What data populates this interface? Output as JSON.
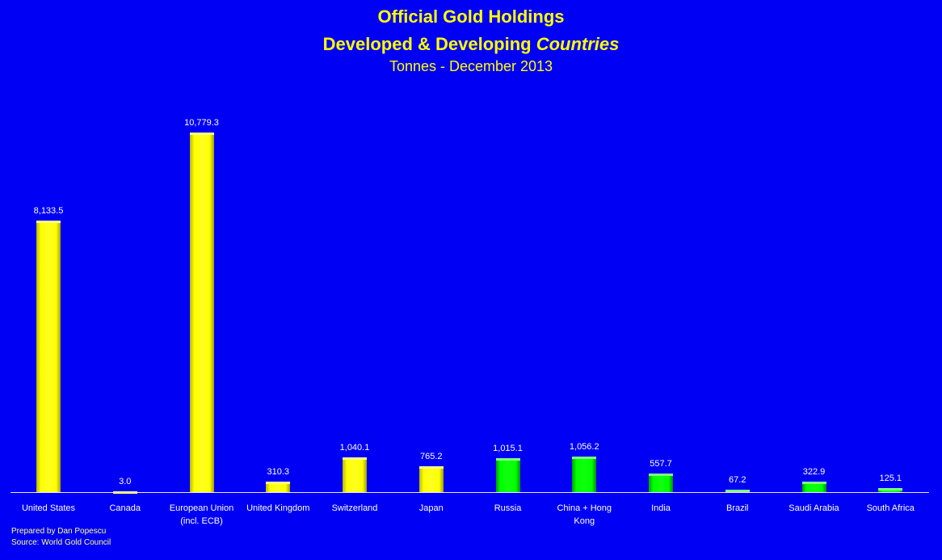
{
  "header": {
    "title": "Official Gold Holdings",
    "subtitle_main": "Developed & Developing ",
    "subtitle_italic": "Countries",
    "unit_line": "Tonnes - December 2013"
  },
  "footer": {
    "prepared_by": "Prepared by Dan Popescu",
    "source": "Source: World Gold Council"
  },
  "colors": {
    "background": "#0000f5",
    "developed": "#ffff00",
    "developing": "#00ff00",
    "title": "#ffff00",
    "labels": "#ffffff"
  },
  "chart_data": {
    "type": "bar",
    "title": "Official Gold Holdings — Developed & Developing Countries",
    "subtitle": "Tonnes - December 2013",
    "xlabel": "",
    "ylabel": "Tonnes",
    "ylim": [
      0,
      11000
    ],
    "grid": false,
    "legend": null,
    "categories": [
      "United States",
      "Canada",
      "European Union (incl. ECB)",
      "United Kingdom",
      "Switzerland",
      "Japan",
      "Russia",
      "China + Hong Kong",
      "India",
      "Brazil",
      "Saudi Arabia",
      "South Africa"
    ],
    "values": [
      8133.5,
      3.0,
      10779.3,
      310.3,
      1040.1,
      765.2,
      1015.1,
      1056.2,
      557.7,
      67.2,
      322.9,
      125.1
    ],
    "value_labels": [
      "8,133.5",
      "3.0",
      "10,779.3",
      "310.3",
      "1,040.1",
      "765.2",
      "1,015.1",
      "1,056.2",
      "557.7",
      "67.2",
      "322.9",
      "125.1"
    ],
    "groups": [
      "developed",
      "developed",
      "developed",
      "developed",
      "developed",
      "developed",
      "developing",
      "developing",
      "developing",
      "developing",
      "developing",
      "developing"
    ],
    "label_lines": [
      [
        "United States"
      ],
      [
        "Canada"
      ],
      [
        "European Union",
        "(incl. ECB)"
      ],
      [
        "United Kingdom"
      ],
      [
        "Switzerland"
      ],
      [
        "Japan"
      ],
      [
        "Russia"
      ],
      [
        "China + Hong",
        "Kong"
      ],
      [
        "India"
      ],
      [
        "Brazil"
      ],
      [
        "Saudi Arabia"
      ],
      [
        "South Africa"
      ]
    ]
  }
}
